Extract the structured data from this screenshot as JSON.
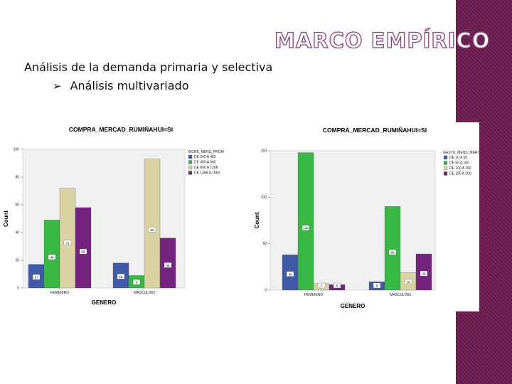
{
  "slide": {
    "title": "MARCO EMPÍRICO",
    "subtitle": "Análisis de la demanda primaria y selectiva",
    "bullet": "Análisis multivariado",
    "accent_color": "#6a1b4d",
    "title_outline_color": "#8e3f86"
  },
  "chart_data": [
    {
      "type": "bar",
      "title": "COMPRA_MERCAD_RUMIÑAHUI=SI",
      "xlabel": "GENERO",
      "ylabel": "Count",
      "ylim": [
        0,
        100
      ],
      "yticks": [
        "0",
        "20",
        "40",
        "60",
        "80",
        "100"
      ],
      "categories": [
        "FEMENINO",
        "MASCULINO"
      ],
      "legend_title": "INGRE_MENS_PROM",
      "legend_position": "right",
      "series": [
        {
          "name": "DE 269 A 450",
          "color": "#3f5aa8",
          "values": [
            17,
            18
          ]
        },
        {
          "name": "DE 450 A 660",
          "color": "#36b843",
          "values": [
            49,
            9
          ]
        },
        {
          "name": "DE 660 A 1268",
          "color": "#d8d3a0",
          "values": [
            72,
            93
          ]
        },
        {
          "name": "DE 1468 A 1869",
          "color": "#75237f",
          "values": [
            58,
            36
          ]
        }
      ],
      "data_labels": [
        [
          "17",
          "49",
          "72",
          "58"
        ],
        [
          "18",
          "9",
          "93",
          "36"
        ]
      ]
    },
    {
      "type": "bar",
      "title": "COMPRA_MERCAD_RUMIÑAHUI=SI",
      "xlabel": "GENERO",
      "ylabel": "Count",
      "ylim": [
        0,
        150
      ],
      "yticks": [
        "0",
        "50",
        "100",
        "150"
      ],
      "categories": [
        "FEMENINO",
        "MASCULINO"
      ],
      "legend_title": "GASTO_MENS_MERCADO",
      "legend_position": "right",
      "series": [
        {
          "name": "DE 10 A 50",
          "color": "#3f5aa8",
          "values": [
            38,
            9
          ]
        },
        {
          "name": "DE 50 A 100",
          "color": "#36b843",
          "values": [
            148,
            90
          ]
        },
        {
          "name": "DE 100 A 150",
          "color": "#d8d3a0",
          "values": [
            7,
            19
          ]
        },
        {
          "name": "DE 150 A 200",
          "color": "#75237f",
          "values": [
            6,
            39
          ]
        }
      ],
      "data_labels": [
        [
          "38",
          "148",
          "7",
          "6"
        ],
        [
          "9",
          "90",
          "19",
          "39"
        ]
      ]
    }
  ]
}
